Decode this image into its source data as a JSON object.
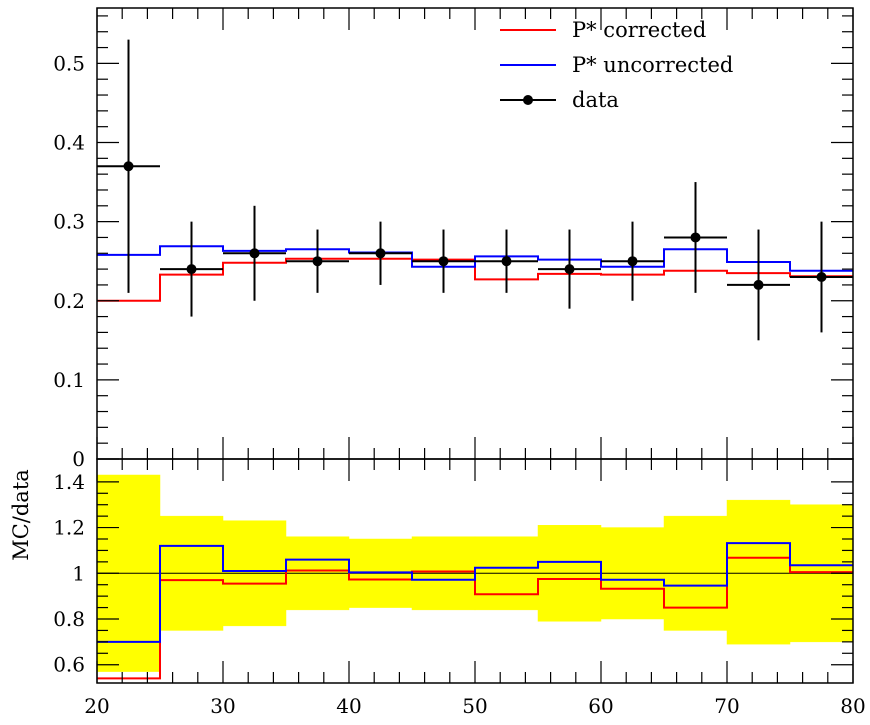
{
  "chart_data": [
    {
      "type": "line",
      "title": "",
      "xlabel": "",
      "ylabel": "",
      "xlim": [
        20,
        80
      ],
      "ylim": [
        0,
        0.57
      ],
      "bin_edges": [
        20,
        25,
        30,
        35,
        40,
        45,
        50,
        55,
        60,
        65,
        70,
        75,
        80
      ],
      "x_ticks": [
        "20",
        "30",
        "40",
        "50",
        "60",
        "70",
        "80"
      ],
      "y_ticks": [
        "0",
        "0.1",
        "0.2",
        "0.3",
        "0.4",
        "0.5"
      ],
      "series": [
        {
          "name": "P* corrected",
          "color": "#ff0000",
          "style": "histogram",
          "values": [
            0.2,
            0.233,
            0.248,
            0.253,
            0.253,
            0.252,
            0.227,
            0.234,
            0.233,
            0.238,
            0.235,
            0.231
          ]
        },
        {
          "name": "P* uncorrected",
          "color": "#0000ff",
          "style": "histogram",
          "values": [
            0.258,
            0.269,
            0.263,
            0.265,
            0.261,
            0.243,
            0.256,
            0.252,
            0.243,
            0.265,
            0.249,
            0.238
          ]
        },
        {
          "name": "data",
          "color": "#000000",
          "style": "points",
          "x": [
            22.5,
            27.5,
            32.5,
            37.5,
            42.5,
            47.5,
            52.5,
            57.5,
            62.5,
            67.5,
            72.5,
            77.5
          ],
          "values": [
            0.37,
            0.24,
            0.26,
            0.25,
            0.26,
            0.25,
            0.25,
            0.24,
            0.25,
            0.28,
            0.22,
            0.23
          ],
          "y_err_low": [
            0.16,
            0.06,
            0.06,
            0.04,
            0.04,
            0.04,
            0.04,
            0.05,
            0.05,
            0.07,
            0.07,
            0.07
          ],
          "y_err_high": [
            0.16,
            0.06,
            0.06,
            0.04,
            0.04,
            0.04,
            0.04,
            0.05,
            0.05,
            0.07,
            0.07,
            0.07
          ]
        }
      ],
      "legend": "top-right"
    },
    {
      "type": "line",
      "title": "",
      "xlabel": "",
      "ylabel": "MC/data",
      "xlim": [
        20,
        80
      ],
      "ylim": [
        0.52,
        1.5
      ],
      "bin_edges": [
        20,
        25,
        30,
        35,
        40,
        45,
        50,
        55,
        60,
        65,
        70,
        75,
        80
      ],
      "y_ticks": [
        "0.6",
        "0.8",
        "1",
        "1.2",
        "1.4"
      ],
      "reference_line": 1,
      "uncertainty_band": {
        "color": "#ffff00",
        "low": [
          0.57,
          0.75,
          0.77,
          0.84,
          0.85,
          0.84,
          0.84,
          0.79,
          0.8,
          0.75,
          0.69,
          0.7
        ],
        "high": [
          1.43,
          1.25,
          1.23,
          1.16,
          1.15,
          1.16,
          1.16,
          1.21,
          1.2,
          1.25,
          1.32,
          1.3
        ]
      },
      "series": [
        {
          "name": "P* corrected",
          "color": "#ff0000",
          "values": [
            0.54,
            0.97,
            0.955,
            1.012,
            0.973,
            1.008,
            0.908,
            0.975,
            0.932,
            0.85,
            1.068,
            1.005
          ]
        },
        {
          "name": "P* uncorrected",
          "color": "#0000ff",
          "values": [
            0.7,
            1.12,
            1.01,
            1.06,
            1.004,
            0.972,
            1.024,
            1.05,
            0.972,
            0.946,
            1.132,
            1.035
          ]
        }
      ]
    }
  ]
}
